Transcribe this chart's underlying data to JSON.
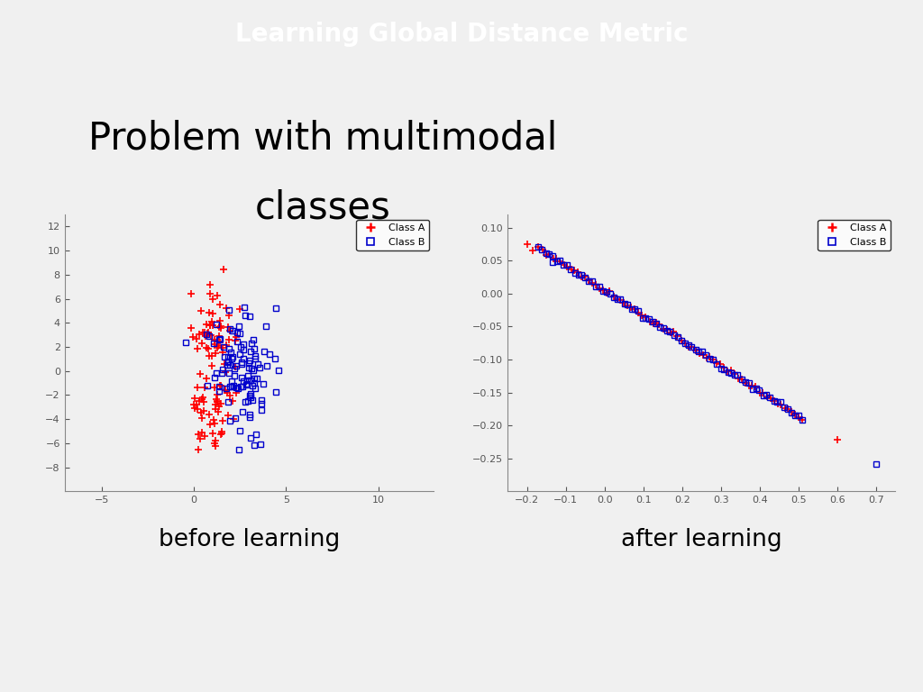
{
  "title": "Learning Global Distance Metric",
  "subtitle_line1": "Problem with multimodal",
  "subtitle_line2": "classes",
  "title_bg": "#1a3080",
  "title_fg": "#ffffff",
  "bg_color": "#f0f0f0",
  "label_before": "before learning",
  "label_after": "after learning",
  "before_xlim": [
    -7,
    13
  ],
  "before_ylim": [
    -10,
    13
  ],
  "before_xticks": [
    -5,
    0,
    5,
    10
  ],
  "before_yticks": [
    -8,
    -6,
    -4,
    -2,
    0,
    2,
    4,
    6,
    8,
    10,
    12
  ],
  "after_xlim": [
    -0.25,
    0.75
  ],
  "after_ylim": [
    -0.3,
    0.12
  ],
  "after_xticks": [
    -0.2,
    -0.1,
    0.0,
    0.1,
    0.2,
    0.3,
    0.4,
    0.5,
    0.6,
    0.7
  ],
  "after_yticks": [
    -0.25,
    -0.2,
    -0.15,
    -0.1,
    -0.05,
    0.0,
    0.05,
    0.1
  ],
  "classA_color": "#ff0000",
  "classB_color": "#0000cc",
  "seed": 42
}
